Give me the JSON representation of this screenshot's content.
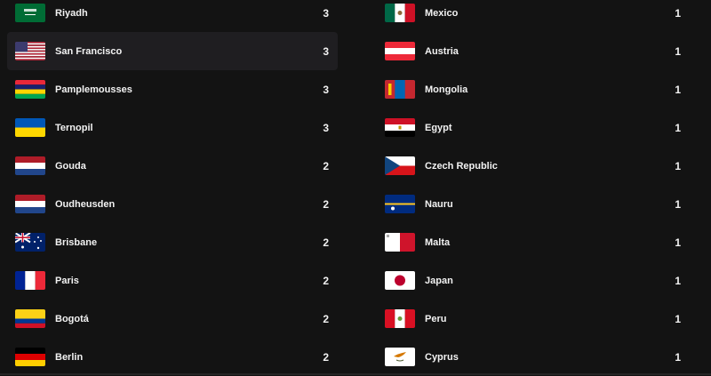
{
  "left": [
    {
      "city": "Riyadh",
      "count": "3",
      "flag": "sa"
    },
    {
      "city": "San Francisco",
      "count": "3",
      "flag": "us",
      "highlighted": true
    },
    {
      "city": "Pamplemousses",
      "count": "3",
      "flag": "mu"
    },
    {
      "city": "Ternopil",
      "count": "3",
      "flag": "ua"
    },
    {
      "city": "Gouda",
      "count": "2",
      "flag": "nl"
    },
    {
      "city": "Oudheusden",
      "count": "2",
      "flag": "nl"
    },
    {
      "city": "Brisbane",
      "count": "2",
      "flag": "au"
    },
    {
      "city": "Paris",
      "count": "2",
      "flag": "fr"
    },
    {
      "city": "Bogotá",
      "count": "2",
      "flag": "co"
    },
    {
      "city": "Berlin",
      "count": "2",
      "flag": "de"
    }
  ],
  "right": [
    {
      "city": "Mexico",
      "count": "1",
      "flag": "mx"
    },
    {
      "city": "Austria",
      "count": "1",
      "flag": "at"
    },
    {
      "city": "Mongolia",
      "count": "1",
      "flag": "mn"
    },
    {
      "city": "Egypt",
      "count": "1",
      "flag": "eg"
    },
    {
      "city": "Czech Republic",
      "count": "1",
      "flag": "cz"
    },
    {
      "city": "Nauru",
      "count": "1",
      "flag": "nr"
    },
    {
      "city": "Malta",
      "count": "1",
      "flag": "mt"
    },
    {
      "city": "Japan",
      "count": "1",
      "flag": "jp"
    },
    {
      "city": "Peru",
      "count": "1",
      "flag": "pe"
    },
    {
      "city": "Cyprus",
      "count": "1",
      "flag": "cy"
    }
  ],
  "colors": {
    "background": "#131313",
    "highlight": "#1f1e21",
    "text": "#f2f2f2"
  }
}
